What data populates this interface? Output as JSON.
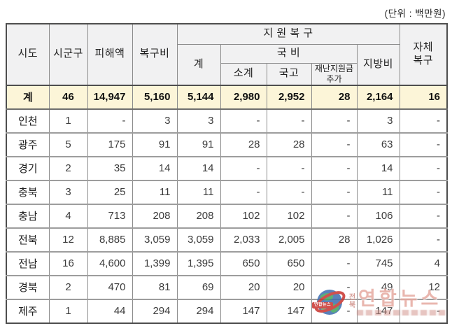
{
  "unit_label": "(단위 : 백만원)",
  "table": {
    "headers": {
      "sido": "시도",
      "sigungu": "시군구",
      "damage": "피해액",
      "recovery_cost": "복구비",
      "support_group": "지 원 복 구",
      "total": "계",
      "national_group": "국 비",
      "subtotal": "소계",
      "treasury": "국고",
      "disaster_fund": "재난지원금\n추가",
      "local": "지방비",
      "self_recovery": "자체\n복구"
    },
    "rows": [
      {
        "region": "계",
        "total": true,
        "values": [
          "46",
          "14,947",
          "5,160",
          "5,144",
          "2,980",
          "2,952",
          "28",
          "2,164",
          "16"
        ]
      },
      {
        "region": "인천",
        "total": false,
        "values": [
          "1",
          "-",
          "3",
          "3",
          "-",
          "-",
          "-",
          "3",
          "-"
        ]
      },
      {
        "region": "광주",
        "total": false,
        "values": [
          "5",
          "175",
          "91",
          "91",
          "28",
          "28",
          "-",
          "63",
          "-"
        ]
      },
      {
        "region": "경기",
        "total": false,
        "values": [
          "2",
          "35",
          "14",
          "14",
          "-",
          "-",
          "-",
          "14",
          "-"
        ]
      },
      {
        "region": "충북",
        "total": false,
        "values": [
          "3",
          "25",
          "11",
          "11",
          "-",
          "-",
          "-",
          "11",
          "-"
        ]
      },
      {
        "region": "충남",
        "total": false,
        "values": [
          "4",
          "713",
          "208",
          "208",
          "102",
          "102",
          "-",
          "106",
          "-"
        ]
      },
      {
        "region": "전북",
        "total": false,
        "values": [
          "12",
          "8,885",
          "3,059",
          "3,059",
          "2,033",
          "2,005",
          "28",
          "1,026",
          "-"
        ]
      },
      {
        "region": "전남",
        "total": false,
        "values": [
          "16",
          "4,600",
          "1,399",
          "1,395",
          "650",
          "650",
          "-",
          "745",
          "4"
        ]
      },
      {
        "region": "경북",
        "total": false,
        "values": [
          "2",
          "470",
          "81",
          "69",
          "20",
          "20",
          "-",
          "49",
          "12"
        ]
      },
      {
        "region": "제주",
        "total": false,
        "values": [
          "1",
          "44",
          "294",
          "294",
          "147",
          "147",
          "-",
          "147",
          "-"
        ]
      }
    ]
  },
  "watermark": {
    "prefix": "전북",
    "main_text": "연합뉴스",
    "badge_text": "연합뉴스"
  },
  "colors": {
    "header_bg": "#F1F1F2",
    "total_row_bg": "#FCF5D8",
    "border_outer": "#4e4e4e",
    "border_inner": "#8c8c8c",
    "watermark_pink": "#e6aaa1",
    "watermark_red": "#c8332f"
  }
}
